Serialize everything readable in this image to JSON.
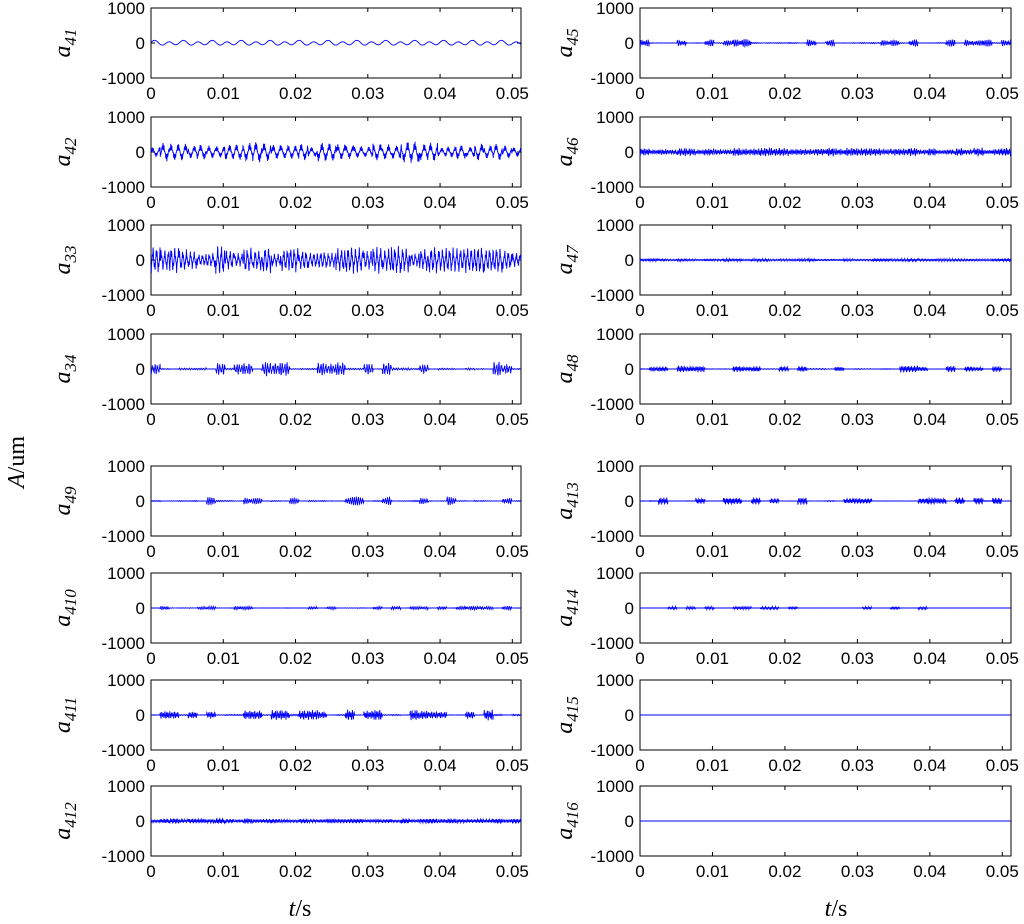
{
  "figure": {
    "ylabel_var": "A",
    "ylabel_unit": "/um",
    "xlabel_var": "t",
    "xlabel_unit": "/s"
  },
  "chart_data": [
    {
      "type": "line",
      "label_base": "a",
      "label_sub": "41",
      "title": "",
      "xlabel": "",
      "ylabel": "",
      "xlim": [
        0,
        0.0512
      ],
      "ylim": [
        -1000,
        1000
      ],
      "x_ticks": [
        "0",
        "0.01",
        "0.02",
        "0.03",
        "0.04",
        "0.05"
      ],
      "y_ticks": [
        "1000",
        "0",
        "-1000"
      ],
      "series": [
        {
          "color": "#0000ff",
          "wave": {
            "amp": 55,
            "freq": 500,
            "kind": "smooth"
          }
        }
      ]
    },
    {
      "type": "line",
      "label_base": "a",
      "label_sub": "42",
      "title": "",
      "xlabel": "",
      "ylabel": "",
      "xlim": [
        0,
        0.0512
      ],
      "ylim": [
        -1000,
        1000
      ],
      "x_ticks": [
        "0",
        "0.01",
        "0.02",
        "0.03",
        "0.04",
        "0.05"
      ],
      "y_ticks": [
        "1000",
        "0",
        "-1000"
      ],
      "series": [
        {
          "color": "#0000ff",
          "wave": {
            "amp": 320,
            "freq": 1000,
            "kind": "bursty"
          }
        }
      ]
    },
    {
      "type": "line",
      "label_base": "a",
      "label_sub": "33",
      "title": "",
      "xlabel": "",
      "ylabel": "",
      "xlim": [
        0,
        0.0512
      ],
      "ylim": [
        -1000,
        1000
      ],
      "x_ticks": [
        "0",
        "0.01",
        "0.02",
        "0.03",
        "0.04",
        "0.05"
      ],
      "y_ticks": [
        "1000",
        "0",
        "-1000"
      ],
      "series": [
        {
          "color": "#0000ff",
          "wave": {
            "amp": 420,
            "freq": 2000,
            "kind": "bursty"
          }
        }
      ]
    },
    {
      "type": "line",
      "label_base": "a",
      "label_sub": "34",
      "title": "",
      "xlabel": "",
      "ylabel": "",
      "xlim": [
        0,
        0.0512
      ],
      "ylim": [
        -1000,
        1000
      ],
      "x_ticks": [
        "0",
        "0.01",
        "0.02",
        "0.03",
        "0.04",
        "0.05"
      ],
      "y_ticks": [
        "1000",
        "0",
        "-1000"
      ],
      "series": [
        {
          "color": "#0000ff",
          "wave": {
            "amp": 220,
            "freq": 3000,
            "kind": "packets"
          }
        }
      ]
    },
    {
      "type": "line",
      "label_base": "a",
      "label_sub": "49",
      "title": "",
      "xlabel": "",
      "ylabel": "",
      "xlim": [
        0,
        0.0512
      ],
      "ylim": [
        -1000,
        1000
      ],
      "x_ticks": [
        "0",
        "0.01",
        "0.02",
        "0.03",
        "0.04",
        "0.05"
      ],
      "y_ticks": [
        "1000",
        "0",
        "-1000"
      ],
      "series": [
        {
          "color": "#0000ff",
          "wave": {
            "amp": 130,
            "freq": 3500,
            "kind": "packets"
          }
        }
      ]
    },
    {
      "type": "line",
      "label_base": "a",
      "label_sub": "410",
      "title": "",
      "xlabel": "",
      "ylabel": "",
      "xlim": [
        0,
        0.0512
      ],
      "ylim": [
        -1000,
        1000
      ],
      "x_ticks": [
        "0",
        "0.01",
        "0.02",
        "0.03",
        "0.04",
        "0.05"
      ],
      "y_ticks": [
        "1000",
        "0",
        "-1000"
      ],
      "series": [
        {
          "color": "#0000ff",
          "wave": {
            "amp": 60,
            "freq": 4000,
            "kind": "packets"
          }
        }
      ]
    },
    {
      "type": "line",
      "label_base": "a",
      "label_sub": "411",
      "title": "",
      "xlabel": "",
      "ylabel": "",
      "xlim": [
        0,
        0.0512
      ],
      "ylim": [
        -1000,
        1000
      ],
      "x_ticks": [
        "0",
        "0.01",
        "0.02",
        "0.03",
        "0.04",
        "0.05"
      ],
      "y_ticks": [
        "1000",
        "0",
        "-1000"
      ],
      "series": [
        {
          "color": "#0000ff",
          "wave": {
            "amp": 160,
            "freq": 4500,
            "kind": "packets"
          }
        }
      ]
    },
    {
      "type": "line",
      "label_base": "a",
      "label_sub": "412",
      "title": "",
      "xlabel": "",
      "ylabel": "",
      "xlim": [
        0,
        0.0512
      ],
      "ylim": [
        -1000,
        1000
      ],
      "x_ticks": [
        "0",
        "0.01",
        "0.02",
        "0.03",
        "0.04",
        "0.05"
      ],
      "y_ticks": [
        "1000",
        "0",
        "-1000"
      ],
      "series": [
        {
          "color": "#0000ff",
          "wave": {
            "amp": 110,
            "freq": 5000,
            "kind": "noise"
          }
        }
      ]
    },
    {
      "type": "line",
      "label_base": "a",
      "label_sub": "45",
      "title": "",
      "xlabel": "",
      "ylabel": "",
      "xlim": [
        0,
        0.0512
      ],
      "ylim": [
        -1000,
        1000
      ],
      "x_ticks": [
        "0",
        "0.01",
        "0.02",
        "0.03",
        "0.04",
        "0.05"
      ],
      "y_ticks": [
        "1000",
        "0",
        "-1000"
      ],
      "series": [
        {
          "color": "#0000ff",
          "wave": {
            "amp": 120,
            "freq": 4000,
            "kind": "packets"
          }
        }
      ]
    },
    {
      "type": "line",
      "label_base": "a",
      "label_sub": "46",
      "title": "",
      "xlabel": "",
      "ylabel": "",
      "xlim": [
        0,
        0.0512
      ],
      "ylim": [
        -1000,
        1000
      ],
      "x_ticks": [
        "0",
        "0.01",
        "0.02",
        "0.03",
        "0.04",
        "0.05"
      ],
      "y_ticks": [
        "1000",
        "0",
        "-1000"
      ],
      "series": [
        {
          "color": "#0000ff",
          "wave": {
            "amp": 170,
            "freq": 4500,
            "kind": "noise"
          }
        }
      ]
    },
    {
      "type": "line",
      "label_base": "a",
      "label_sub": "47",
      "title": "",
      "xlabel": "",
      "ylabel": "",
      "xlim": [
        0,
        0.0512
      ],
      "ylim": [
        -1000,
        1000
      ],
      "x_ticks": [
        "0",
        "0.01",
        "0.02",
        "0.03",
        "0.04",
        "0.05"
      ],
      "y_ticks": [
        "1000",
        "0",
        "-1000"
      ],
      "series": [
        {
          "color": "#0000ff",
          "wave": {
            "amp": 60,
            "freq": 5000,
            "kind": "noise"
          }
        }
      ]
    },
    {
      "type": "line",
      "label_base": "a",
      "label_sub": "48",
      "title": "",
      "xlabel": "",
      "ylabel": "",
      "xlim": [
        0,
        0.0512
      ],
      "ylim": [
        -1000,
        1000
      ],
      "x_ticks": [
        "0",
        "0.01",
        "0.02",
        "0.03",
        "0.04",
        "0.05"
      ],
      "y_ticks": [
        "1000",
        "0",
        "-1000"
      ],
      "series": [
        {
          "color": "#0000ff",
          "wave": {
            "amp": 100,
            "freq": 5000,
            "kind": "packets"
          }
        }
      ]
    },
    {
      "type": "line",
      "label_base": "a",
      "label_sub": "413",
      "title": "",
      "xlabel": "",
      "ylabel": "",
      "xlim": [
        0,
        0.0512
      ],
      "ylim": [
        -1000,
        1000
      ],
      "x_ticks": [
        "0",
        "0.01",
        "0.02",
        "0.03",
        "0.04",
        "0.05"
      ],
      "y_ticks": [
        "1000",
        "0",
        "-1000"
      ],
      "series": [
        {
          "color": "#0000ff",
          "wave": {
            "amp": 110,
            "freq": 5000,
            "kind": "packets"
          }
        }
      ]
    },
    {
      "type": "line",
      "label_base": "a",
      "label_sub": "414",
      "title": "",
      "xlabel": "",
      "ylabel": "",
      "xlim": [
        0,
        0.0512
      ],
      "ylim": [
        -1000,
        1000
      ],
      "x_ticks": [
        "0",
        "0.01",
        "0.02",
        "0.03",
        "0.04",
        "0.05"
      ],
      "y_ticks": [
        "1000",
        "0",
        "-1000"
      ],
      "series": [
        {
          "color": "#0000ff",
          "wave": {
            "amp": 40,
            "freq": 5000,
            "kind": "sparse"
          }
        }
      ]
    },
    {
      "type": "line",
      "label_base": "a",
      "label_sub": "415",
      "title": "",
      "xlabel": "",
      "ylabel": "",
      "xlim": [
        0,
        0.0512
      ],
      "ylim": [
        -1000,
        1000
      ],
      "x_ticks": [
        "0",
        "0.01",
        "0.02",
        "0.03",
        "0.04",
        "0.05"
      ],
      "y_ticks": [
        "1000",
        "0",
        "-1000"
      ],
      "series": [
        {
          "color": "#0000ff",
          "wave": {
            "amp": 0,
            "freq": 0,
            "kind": "flat"
          }
        }
      ]
    },
    {
      "type": "line",
      "label_base": "a",
      "label_sub": "416",
      "title": "",
      "xlabel": "",
      "ylabel": "",
      "xlim": [
        0,
        0.0512
      ],
      "ylim": [
        -1000,
        1000
      ],
      "x_ticks": [
        "0",
        "0.01",
        "0.02",
        "0.03",
        "0.04",
        "0.05"
      ],
      "y_ticks": [
        "1000",
        "0",
        "-1000"
      ],
      "series": [
        {
          "color": "#0000ff",
          "wave": {
            "amp": 0,
            "freq": 0,
            "kind": "flat"
          }
        }
      ]
    }
  ]
}
